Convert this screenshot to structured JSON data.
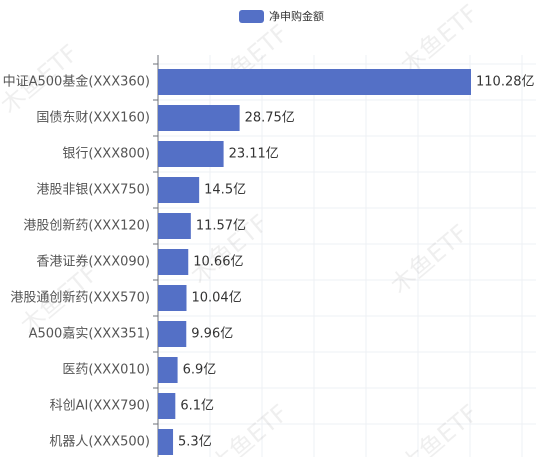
{
  "chart_data": {
    "type": "bar",
    "orientation": "horizontal",
    "watermark": "木鱼ETF",
    "categories": [
      "中证A500基金(XXX360)",
      "国债东财(XXX160)",
      "银行(XXX800)",
      "港股非银(XXX750)",
      "港股创新药(XXX120)",
      "香港证券(XXX090)",
      "港股通创新药(XXX570)",
      "A500嘉实(XXX351)",
      "医药(XXX010)",
      "科创AI(XXX790)",
      "机器人(XXX500)"
    ],
    "series": [
      {
        "name": "净申购金额",
        "color": "#5470c6",
        "values": [
          110.28,
          28.75,
          23.11,
          14.5,
          11.57,
          10.66,
          10.04,
          9.96,
          6.9,
          6.1,
          5.3
        ],
        "value_labels": [
          "110.28亿",
          "28.75亿",
          "23.11亿",
          "14.5亿",
          "11.57亿",
          "10.66亿",
          "10.04亿",
          "9.96亿",
          "6.9亿",
          "6.1亿",
          "5.3亿"
        ]
      }
    ]
  }
}
